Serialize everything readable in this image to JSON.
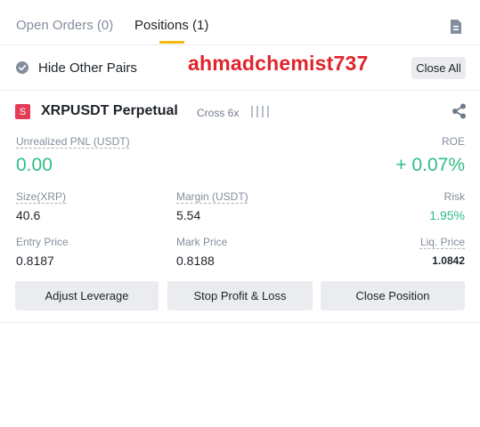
{
  "tabs": [
    {
      "label": "Open Orders (0)",
      "active": false
    },
    {
      "label": "Positions (1)",
      "active": true
    }
  ],
  "hide_other_pairs": {
    "label": "Hide Other Pairs",
    "checked": true
  },
  "watermark": "ahmadchemist737",
  "close_all_label": "Close All",
  "position": {
    "side_badge": "S",
    "symbol": "XRPUSDT Perpetual",
    "margin_mode": "Cross 6x",
    "unrealized_pnl_label": "Unrealized PNL (USDT)",
    "unrealized_pnl_value": "0.00",
    "roe_label": "ROE",
    "roe_value": "+ 0.07%",
    "size_label": "Size(XRP)",
    "size_value": "40.6",
    "margin_label": "Margin (USDT)",
    "margin_value": "5.54",
    "risk_label": "Risk",
    "risk_value": "1.95%",
    "entry_price_label": "Entry Price",
    "entry_price_value": "0.8187",
    "mark_price_label": "Mark Price",
    "mark_price_value": "0.8188",
    "liq_price_label": "Liq. Price",
    "liq_price_value": "1.0842"
  },
  "buttons": {
    "adjust_leverage": "Adjust Leverage",
    "stop_profit_loss": "Stop Profit & Loss",
    "close_position": "Close Position"
  },
  "colors": {
    "accent": "#f0b90b",
    "positive": "#2ebd85",
    "short_badge": "#e33d55",
    "watermark": "#e0242c"
  },
  "icons": [
    "document-icon",
    "check-circle-icon",
    "signal-bars-icon",
    "share-icon"
  ]
}
